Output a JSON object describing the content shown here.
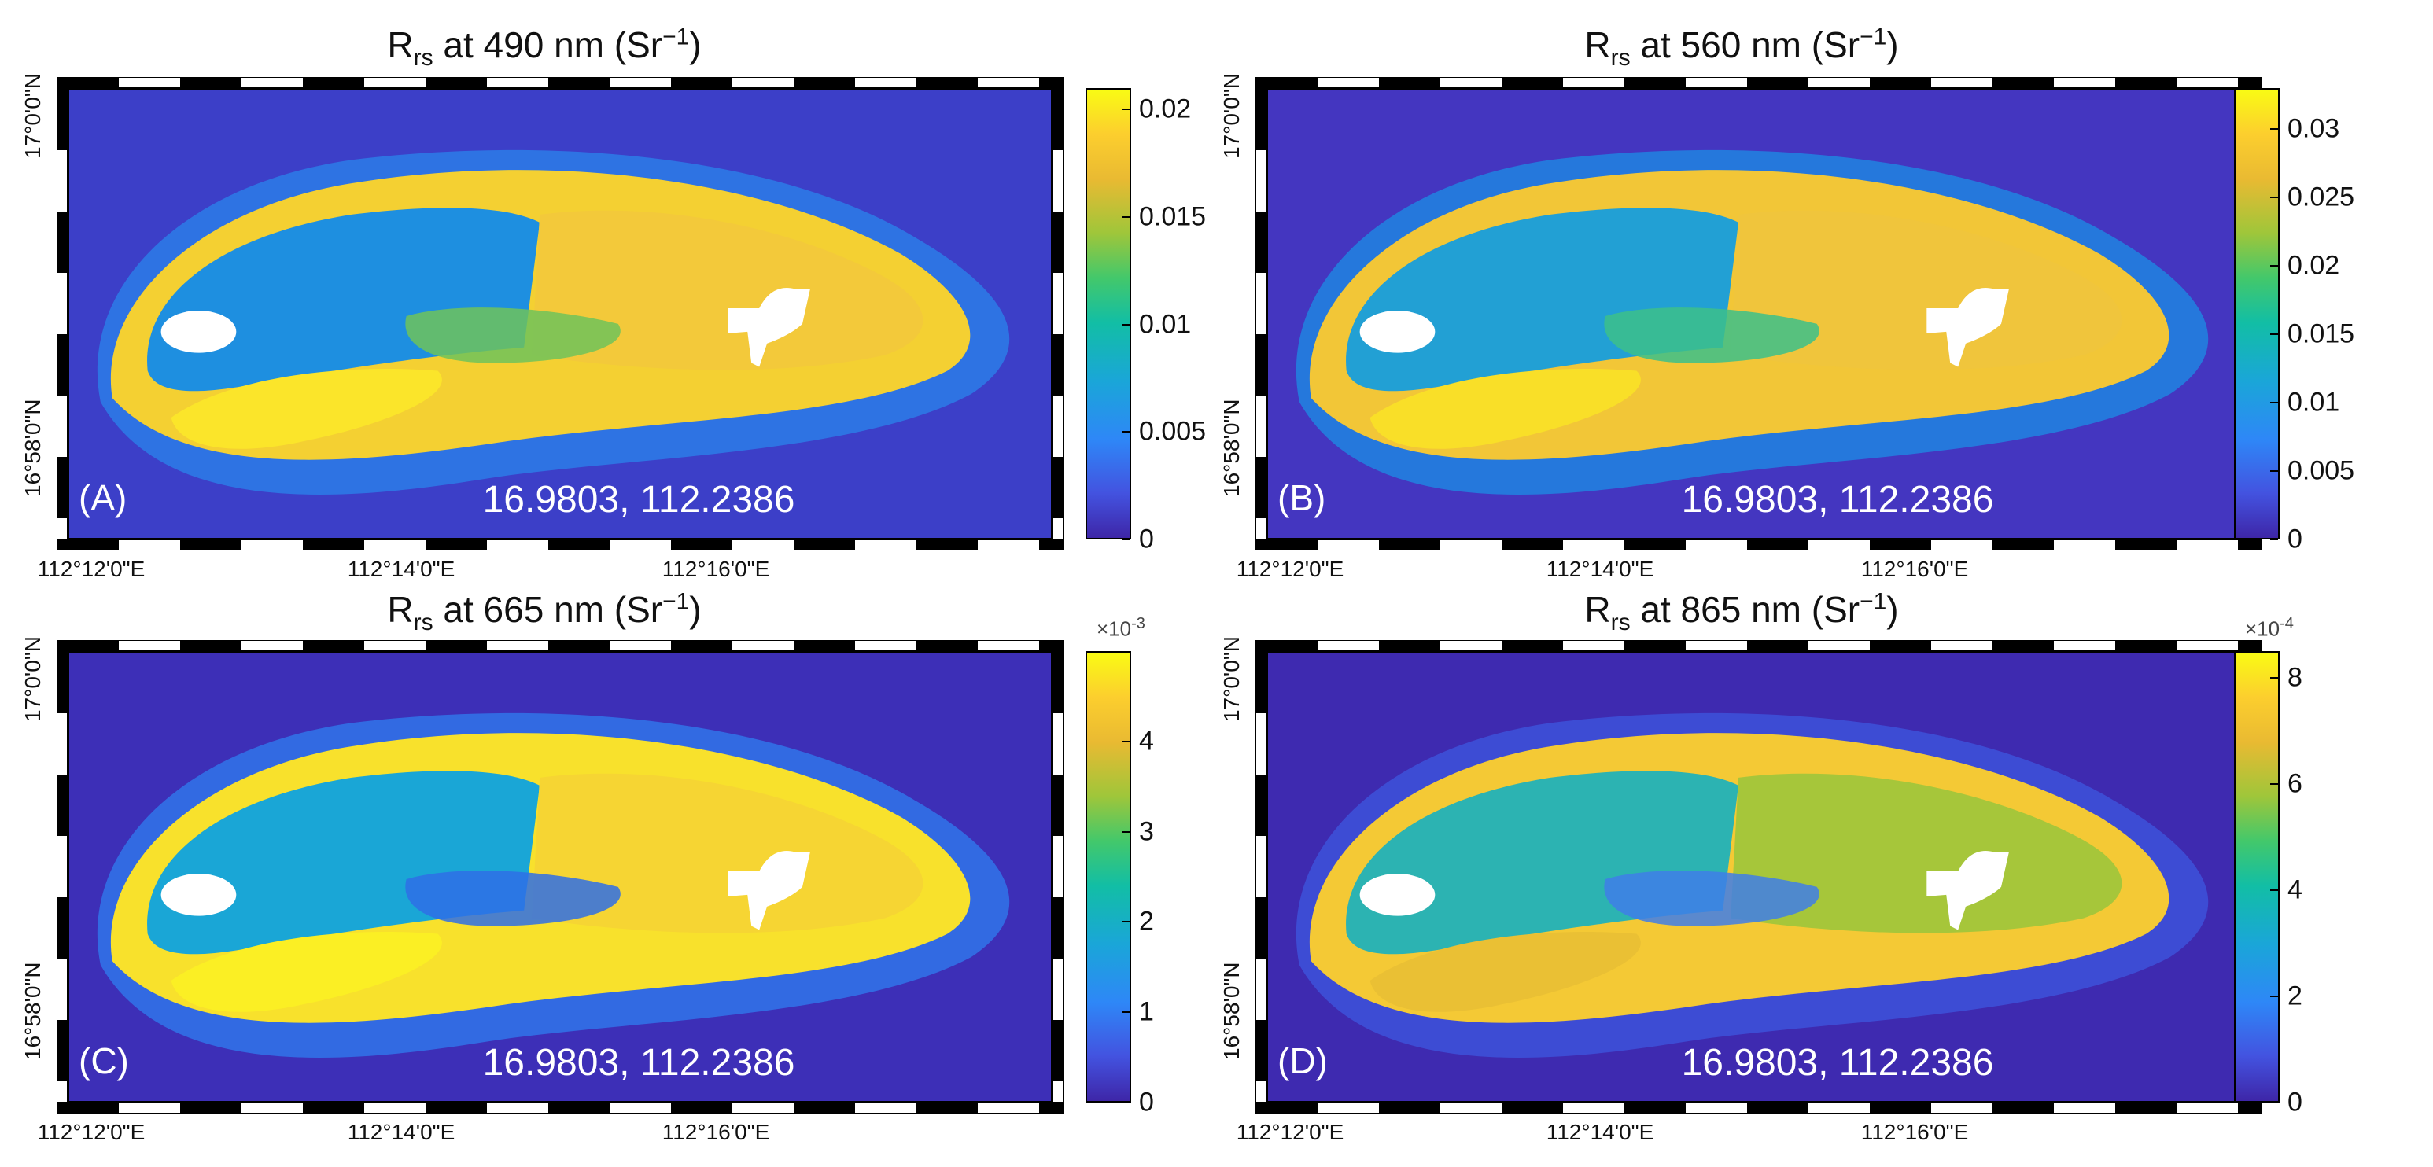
{
  "figure": {
    "panels": [
      {
        "id": "A",
        "title_main": "R",
        "title_sub": "rs",
        "title_rest": " at 490 nm (Sr",
        "title_sup": "−1",
        "title_close": ")",
        "label": "(A)",
        "coordinate": "16.9803, 112.2386",
        "lon_ticks": [
          "112°12'0\"E",
          "112°14'0\"E",
          "112°16'0\"E"
        ],
        "lat_ticks": [
          "17°0'0\"N",
          "16°58'0\"N"
        ],
        "colorbar_ticks": [
          "0.02",
          "0.015",
          "0.01",
          "0.005",
          "0"
        ],
        "colorbar_exponent": "",
        "colorbar_exponent_sup": ""
      },
      {
        "id": "B",
        "title_main": "R",
        "title_sub": "rs",
        "title_rest": " at 560 nm (Sr",
        "title_sup": "−1",
        "title_close": ")",
        "label": "(B)",
        "coordinate": "16.9803, 112.2386",
        "lon_ticks": [
          "112°12'0\"E",
          "112°14'0\"E",
          "112°16'0\"E"
        ],
        "lat_ticks": [
          "17°0'0\"N",
          "16°58'0\"N"
        ],
        "colorbar_ticks": [
          "0.03",
          "0.025",
          "0.02",
          "0.015",
          "0.01",
          "0.005",
          "0"
        ],
        "colorbar_exponent": "",
        "colorbar_exponent_sup": ""
      },
      {
        "id": "C",
        "title_main": "R",
        "title_sub": "rs",
        "title_rest": " at 665 nm (Sr",
        "title_sup": "−1",
        "title_close": ")",
        "label": "(C)",
        "coordinate": "16.9803, 112.2386",
        "lon_ticks": [
          "112°12'0\"E",
          "112°14'0\"E",
          "112°16'0\"E"
        ],
        "lat_ticks": [
          "17°0'0\"N",
          "16°58'0\"N"
        ],
        "colorbar_ticks": [
          "4",
          "3",
          "2",
          "1",
          "0"
        ],
        "colorbar_exponent": "×10",
        "colorbar_exponent_sup": "-3"
      },
      {
        "id": "D",
        "title_main": "R",
        "title_sub": "rs",
        "title_rest": " at 865 nm (Sr",
        "title_sup": "−1",
        "title_close": ")",
        "label": "(D)",
        "coordinate": "16.9803, 112.2386",
        "lon_ticks": [
          "112°12'0\"E",
          "112°14'0\"E",
          "112°16'0\"E"
        ],
        "lat_ticks": [
          "17°0'0\"N",
          "16°58'0\"N"
        ],
        "colorbar_ticks": [
          "8",
          "6",
          "4",
          "2",
          "0"
        ],
        "colorbar_exponent": "×10",
        "colorbar_exponent_sup": "-4"
      }
    ]
  },
  "chart_data": [
    {
      "type": "heatmap",
      "title": "Rrs at 490 nm (Sr−1)",
      "panel": "A",
      "colorbar_range": [
        0,
        0.021
      ],
      "colorbar_ticks": [
        0,
        0.005,
        0.01,
        0.015,
        0.02
      ],
      "x_ticks": [
        "112°12'0\"E",
        "112°14'0\"E",
        "112°16'0\"E"
      ],
      "y_ticks": [
        "17°0'0\"N",
        "16°58'0\"N"
      ],
      "annotation": "16.9803, 112.2386"
    },
    {
      "type": "heatmap",
      "title": "Rrs at 560 nm (Sr−1)",
      "panel": "B",
      "colorbar_range": [
        0,
        0.033
      ],
      "colorbar_ticks": [
        0,
        0.005,
        0.01,
        0.015,
        0.02,
        0.025,
        0.03
      ],
      "x_ticks": [
        "112°12'0\"E",
        "112°14'0\"E",
        "112°16'0\"E"
      ],
      "y_ticks": [
        "17°0'0\"N",
        "16°58'0\"N"
      ],
      "annotation": "16.9803, 112.2386"
    },
    {
      "type": "heatmap",
      "title": "Rrs at 665 nm (Sr−1)",
      "panel": "C",
      "colorbar_range": [
        0,
        0.005
      ],
      "colorbar_multiplier": "1e-3",
      "colorbar_ticks": [
        0,
        1,
        2,
        3,
        4
      ],
      "x_ticks": [
        "112°12'0\"E",
        "112°14'0\"E",
        "112°16'0\"E"
      ],
      "y_ticks": [
        "17°0'0\"N",
        "16°58'0\"N"
      ],
      "annotation": "16.9803, 112.2386"
    },
    {
      "type": "heatmap",
      "title": "Rrs at 865 nm (Sr−1)",
      "panel": "D",
      "colorbar_range": [
        0,
        0.00085
      ],
      "colorbar_multiplier": "1e-4",
      "colorbar_ticks": [
        0,
        2,
        4,
        6,
        8
      ],
      "x_ticks": [
        "112°12'0\"E",
        "112°14'0\"E",
        "112°16'0\"E"
      ],
      "y_ticks": [
        "17°0'0\"N",
        "16°58'0\"N"
      ],
      "annotation": "16.9803, 112.2386"
    }
  ]
}
